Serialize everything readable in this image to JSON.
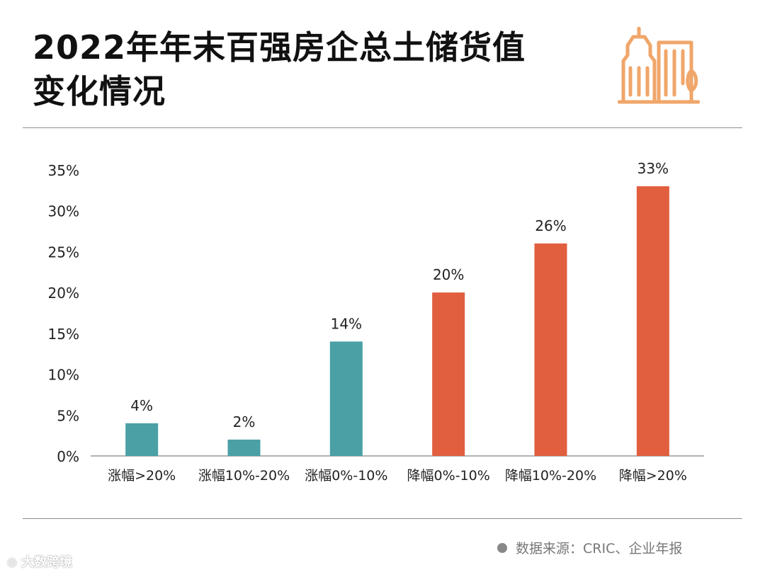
{
  "header": {
    "title_line1": "2022年年末百强房企总土储货值",
    "title_line2": "变化情况"
  },
  "icon": "building-icon",
  "colors": {
    "rise": "#4aa0a5",
    "fall": "#e15e3f",
    "icon": "#f0a66a",
    "axis": "#999999"
  },
  "chart_data": {
    "type": "bar",
    "categories": [
      "涨幅>20%",
      "涨幅10%-20%",
      "涨幅0%-10%",
      "降幅0%-10%",
      "降幅10%-20%",
      "降幅>20%"
    ],
    "values": [
      4,
      2,
      14,
      20,
      26,
      33
    ],
    "data_labels": [
      "4%",
      "2%",
      "14%",
      "20%",
      "26%",
      "33%"
    ],
    "colors": [
      "#4aa0a5",
      "#4aa0a5",
      "#4aa0a5",
      "#e15e3f",
      "#e15e3f",
      "#e15e3f"
    ],
    "yticks": [
      "0%",
      "5%",
      "10%",
      "15%",
      "20%",
      "25%",
      "30%",
      "35%"
    ],
    "ylim": [
      0,
      35
    ],
    "title": "2022年年末百强房企总土储货值变化情况",
    "xlabel": "",
    "ylabel": "",
    "grid": false
  },
  "footer": {
    "source": "数据来源：CRIC、企业年报",
    "watermark": "大数跨境"
  }
}
